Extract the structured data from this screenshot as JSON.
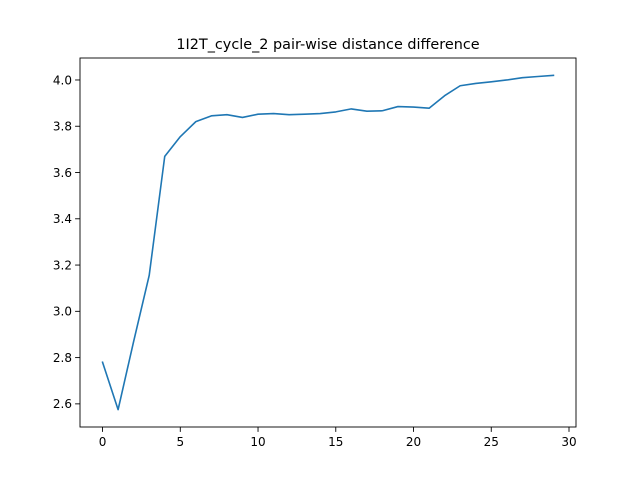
{
  "chart_data": {
    "type": "line",
    "title": "1I2T_cycle_2 pair-wise distance difference",
    "xlabel": "",
    "ylabel": "",
    "xlim": [
      -1.45,
      30.45
    ],
    "ylim": [
      2.5,
      4.095
    ],
    "xticks": [
      0,
      5,
      10,
      15,
      20,
      25,
      30
    ],
    "xtick_labels": [
      "0",
      "5",
      "10",
      "15",
      "20",
      "25",
      "30"
    ],
    "yticks": [
      2.6,
      2.8,
      3.0,
      3.2,
      3.4,
      3.6,
      3.8,
      4.0
    ],
    "ytick_labels": [
      "2.6",
      "2.8",
      "3.0",
      "3.2",
      "3.4",
      "3.6",
      "3.8",
      "4.0"
    ],
    "grid": false,
    "series": [
      {
        "color": "#1f77b4",
        "x": [
          0,
          1,
          2,
          3,
          4,
          5,
          6,
          7,
          8,
          9,
          10,
          11,
          12,
          13,
          14,
          15,
          16,
          17,
          18,
          19,
          20,
          21,
          22,
          23,
          24,
          25,
          26,
          27,
          28,
          29
        ],
        "y": [
          2.78,
          2.575,
          2.87,
          3.155,
          3.67,
          3.755,
          3.82,
          3.845,
          3.85,
          3.838,
          3.852,
          3.855,
          3.85,
          3.852,
          3.855,
          3.862,
          3.875,
          3.865,
          3.867,
          3.885,
          3.883,
          3.878,
          3.932,
          3.975,
          3.985,
          3.992,
          4.0,
          4.01,
          4.015,
          4.02
        ]
      }
    ]
  }
}
